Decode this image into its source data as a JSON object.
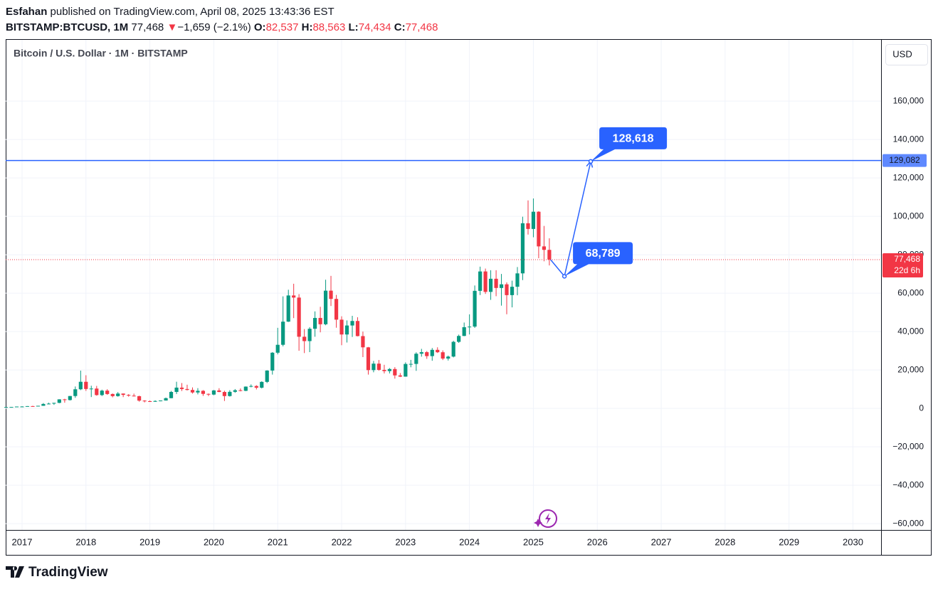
{
  "header": {
    "author": "Esfahan",
    "published": "published on TradingView.com, April 08, 2025 13:43:36 EST",
    "symbol": "BITSTAMP:BTCUSD, 1M",
    "last": "77,468",
    "change_arrow": "▼",
    "change": "−1,659 (−2.1%)",
    "ohlc": [
      {
        "key": "O:",
        "value": "82,537"
      },
      {
        "key": "H:",
        "value": "88,563"
      },
      {
        "key": "L:",
        "value": "74,434"
      },
      {
        "key": "C:",
        "value": "77,468"
      }
    ]
  },
  "footer": {
    "brand": "TradingView"
  },
  "chart_data": {
    "type": "candlestick",
    "title": "Bitcoin / U.S. Dollar · 1M · BITSTAMP",
    "currency": "USD",
    "up_color": "#089981",
    "down_color": "#f23645",
    "grid": true,
    "xlim": [
      2016.744,
      2030.44
    ],
    "xticks": [
      2017,
      2018,
      2019,
      2020,
      2021,
      2022,
      2023,
      2024,
      2025,
      2026,
      2027,
      2028,
      2029,
      2030
    ],
    "ylim": [
      -63300,
      191900
    ],
    "yticks": [
      {
        "value": 160000,
        "label": "160,000"
      },
      {
        "value": 140000,
        "label": "140,000"
      },
      {
        "value": 120000,
        "label": "120,000"
      },
      {
        "value": 100000,
        "label": "100,000"
      },
      {
        "value": 80000,
        "label": "80,000"
      },
      {
        "value": 60000,
        "label": "60,000"
      },
      {
        "value": 40000,
        "label": "40,000"
      },
      {
        "value": 20000,
        "label": "20,000"
      },
      0,
      {
        "value": -20000,
        "label": "−20,000"
      },
      {
        "value": -40000,
        "label": "−40,000"
      },
      {
        "value": -60000,
        "label": "−60,000"
      }
    ],
    "x": [
      2016.75,
      2016.833,
      2016.917,
      2017,
      2017.083,
      2017.167,
      2017.25,
      2017.333,
      2017.417,
      2017.5,
      2017.583,
      2017.667,
      2017.75,
      2017.833,
      2017.917,
      2018,
      2018.083,
      2018.167,
      2018.25,
      2018.333,
      2018.417,
      2018.5,
      2018.583,
      2018.667,
      2018.75,
      2018.833,
      2018.917,
      2019,
      2019.083,
      2019.167,
      2019.25,
      2019.333,
      2019.417,
      2019.5,
      2019.583,
      2019.667,
      2019.75,
      2019.833,
      2019.917,
      2020,
      2020.083,
      2020.167,
      2020.25,
      2020.333,
      2020.417,
      2020.5,
      2020.583,
      2020.667,
      2020.75,
      2020.833,
      2020.917,
      2021,
      2021.083,
      2021.167,
      2021.25,
      2021.333,
      2021.417,
      2021.5,
      2021.583,
      2021.667,
      2021.75,
      2021.833,
      2021.917,
      2022,
      2022.083,
      2022.167,
      2022.25,
      2022.333,
      2022.417,
      2022.5,
      2022.583,
      2022.667,
      2022.75,
      2022.833,
      2022.917,
      2023,
      2023.083,
      2023.167,
      2023.25,
      2023.333,
      2023.417,
      2023.5,
      2023.583,
      2023.667,
      2023.75,
      2023.833,
      2023.917,
      2024,
      2024.083,
      2024.167,
      2024.25,
      2024.333,
      2024.417,
      2024.5,
      2024.583,
      2024.667,
      2024.75,
      2024.833,
      2024.917,
      2025,
      2025.083,
      2025.167,
      2025.25
    ],
    "open": [
      610,
      700,
      745,
      965,
      970,
      1190,
      1080,
      1350,
      2300,
      2480,
      2870,
      4700,
      4340,
      6440,
      9950,
      13850,
      10100,
      10320,
      6930,
      9240,
      7490,
      6400,
      7730,
      7030,
      6630,
      6370,
      4040,
      3740,
      3460,
      3850,
      4100,
      5320,
      8570,
      10820,
      10080,
      9600,
      8290,
      9150,
      7550,
      7190,
      9350,
      8540,
      6420,
      8620,
      9450,
      9140,
      11340,
      11650,
      10780,
      13800,
      19700,
      28990,
      33110,
      45160,
      58800,
      57700,
      37300,
      35040,
      41460,
      47100,
      43800,
      61300,
      57000,
      46200,
      38480,
      43160,
      45510,
      37640,
      31790,
      19930,
      23300,
      20050,
      19420,
      20490,
      17170,
      16540,
      23130,
      23150,
      28470,
      29270,
      27220,
      30480,
      29230,
      25940,
      26970,
      34650,
      37720,
      42280,
      42580,
      61200,
      71300,
      60660,
      67500,
      62700,
      64600,
      58970,
      63330,
      70300,
      96400,
      93430,
      102400,
      84350,
      82537
    ],
    "high": [
      740,
      755,
      975,
      1150,
      1200,
      1350,
      1350,
      2760,
      2980,
      2920,
      4750,
      4980,
      6470,
      11400,
      19666,
      17250,
      11800,
      11700,
      9760,
      9990,
      7760,
      8500,
      7750,
      7410,
      7680,
      6600,
      4250,
      4140,
      4200,
      4130,
      5640,
      9090,
      13880,
      13200,
      12330,
      10930,
      10540,
      9510,
      7750,
      9590,
      10500,
      9190,
      9470,
      10070,
      10380,
      11440,
      12470,
      12080,
      14100,
      19880,
      29300,
      41950,
      58330,
      61780,
      64900,
      59500,
      41300,
      42300,
      50500,
      52900,
      67000,
      69000,
      59100,
      47950,
      45800,
      48200,
      47450,
      40000,
      31980,
      24700,
      25200,
      22700,
      21000,
      21460,
      18400,
      23950,
      25250,
      29200,
      31000,
      29850,
      31430,
      31810,
      30200,
      27490,
      35200,
      38420,
      44700,
      48970,
      64000,
      73800,
      72800,
      71950,
      71950,
      70000,
      65600,
      66500,
      73600,
      99800,
      108300,
      109300,
      102700,
      95000,
      88563
    ],
    "low": [
      605,
      690,
      740,
      750,
      915,
      890,
      1060,
      1340,
      2100,
      1830,
      2700,
      2970,
      4110,
      5500,
      9500,
      9100,
      5900,
      6600,
      6430,
      7060,
      5750,
      6100,
      5880,
      6100,
      6200,
      3500,
      3130,
      3350,
      3400,
      3700,
      4060,
      5300,
      7500,
      9060,
      9320,
      7710,
      7300,
      6500,
      6430,
      6850,
      8450,
      3850,
      6150,
      8120,
      8880,
      8990,
      10970,
      9880,
      10370,
      13200,
      17600,
      28130,
      32300,
      45000,
      47000,
      30000,
      28800,
      29300,
      37300,
      39600,
      43300,
      53300,
      42000,
      32900,
      34300,
      37200,
      37500,
      26700,
      17590,
      18800,
      19600,
      18200,
      18200,
      15480,
      16300,
      16500,
      21400,
      19550,
      26940,
      25800,
      24800,
      28860,
      25170,
      24920,
      26550,
      34100,
      37600,
      38500,
      41900,
      59000,
      59600,
      56500,
      58400,
      53500,
      49000,
      52600,
      58900,
      66800,
      90500,
      89100,
      78200,
      76600,
      74434
    ],
    "close": [
      700,
      745,
      965,
      970,
      1190,
      1080,
      1350,
      2300,
      2480,
      2870,
      4700,
      4340,
      6440,
      9950,
      13850,
      10100,
      10320,
      6930,
      9240,
      7490,
      6400,
      7730,
      7030,
      6630,
      6370,
      4040,
      3740,
      3460,
      3850,
      4100,
      5320,
      8570,
      10820,
      10080,
      9600,
      8290,
      9150,
      7550,
      7190,
      9350,
      8540,
      6420,
      8620,
      9450,
      9140,
      11340,
      11650,
      10780,
      13800,
      19700,
      28990,
      33110,
      45160,
      58800,
      57700,
      37300,
      35040,
      41460,
      47100,
      43800,
      61300,
      57000,
      46200,
      38480,
      43160,
      45510,
      37640,
      31790,
      19930,
      23300,
      20050,
      19420,
      20490,
      17170,
      16540,
      23130,
      23150,
      28470,
      29270,
      27220,
      30480,
      29230,
      25940,
      26970,
      34650,
      37720,
      42280,
      42580,
      61200,
      71300,
      60660,
      67500,
      62700,
      64600,
      58970,
      63330,
      70300,
      96400,
      93430,
      102400,
      84350,
      82537,
      77468
    ],
    "horizontal_line": {
      "value": 129082,
      "label": "129,082",
      "color": "#2962ff"
    },
    "last_price": {
      "value": 77468,
      "label": "77,468",
      "countdown": "22d 6h"
    },
    "projection": {
      "color": "#2962ff",
      "x": [
        2025.27,
        2025.486,
        2025.898
      ],
      "values": [
        77400,
        68789,
        128618
      ],
      "value_labels": [
        null,
        "68,789",
        "128,618"
      ]
    }
  }
}
